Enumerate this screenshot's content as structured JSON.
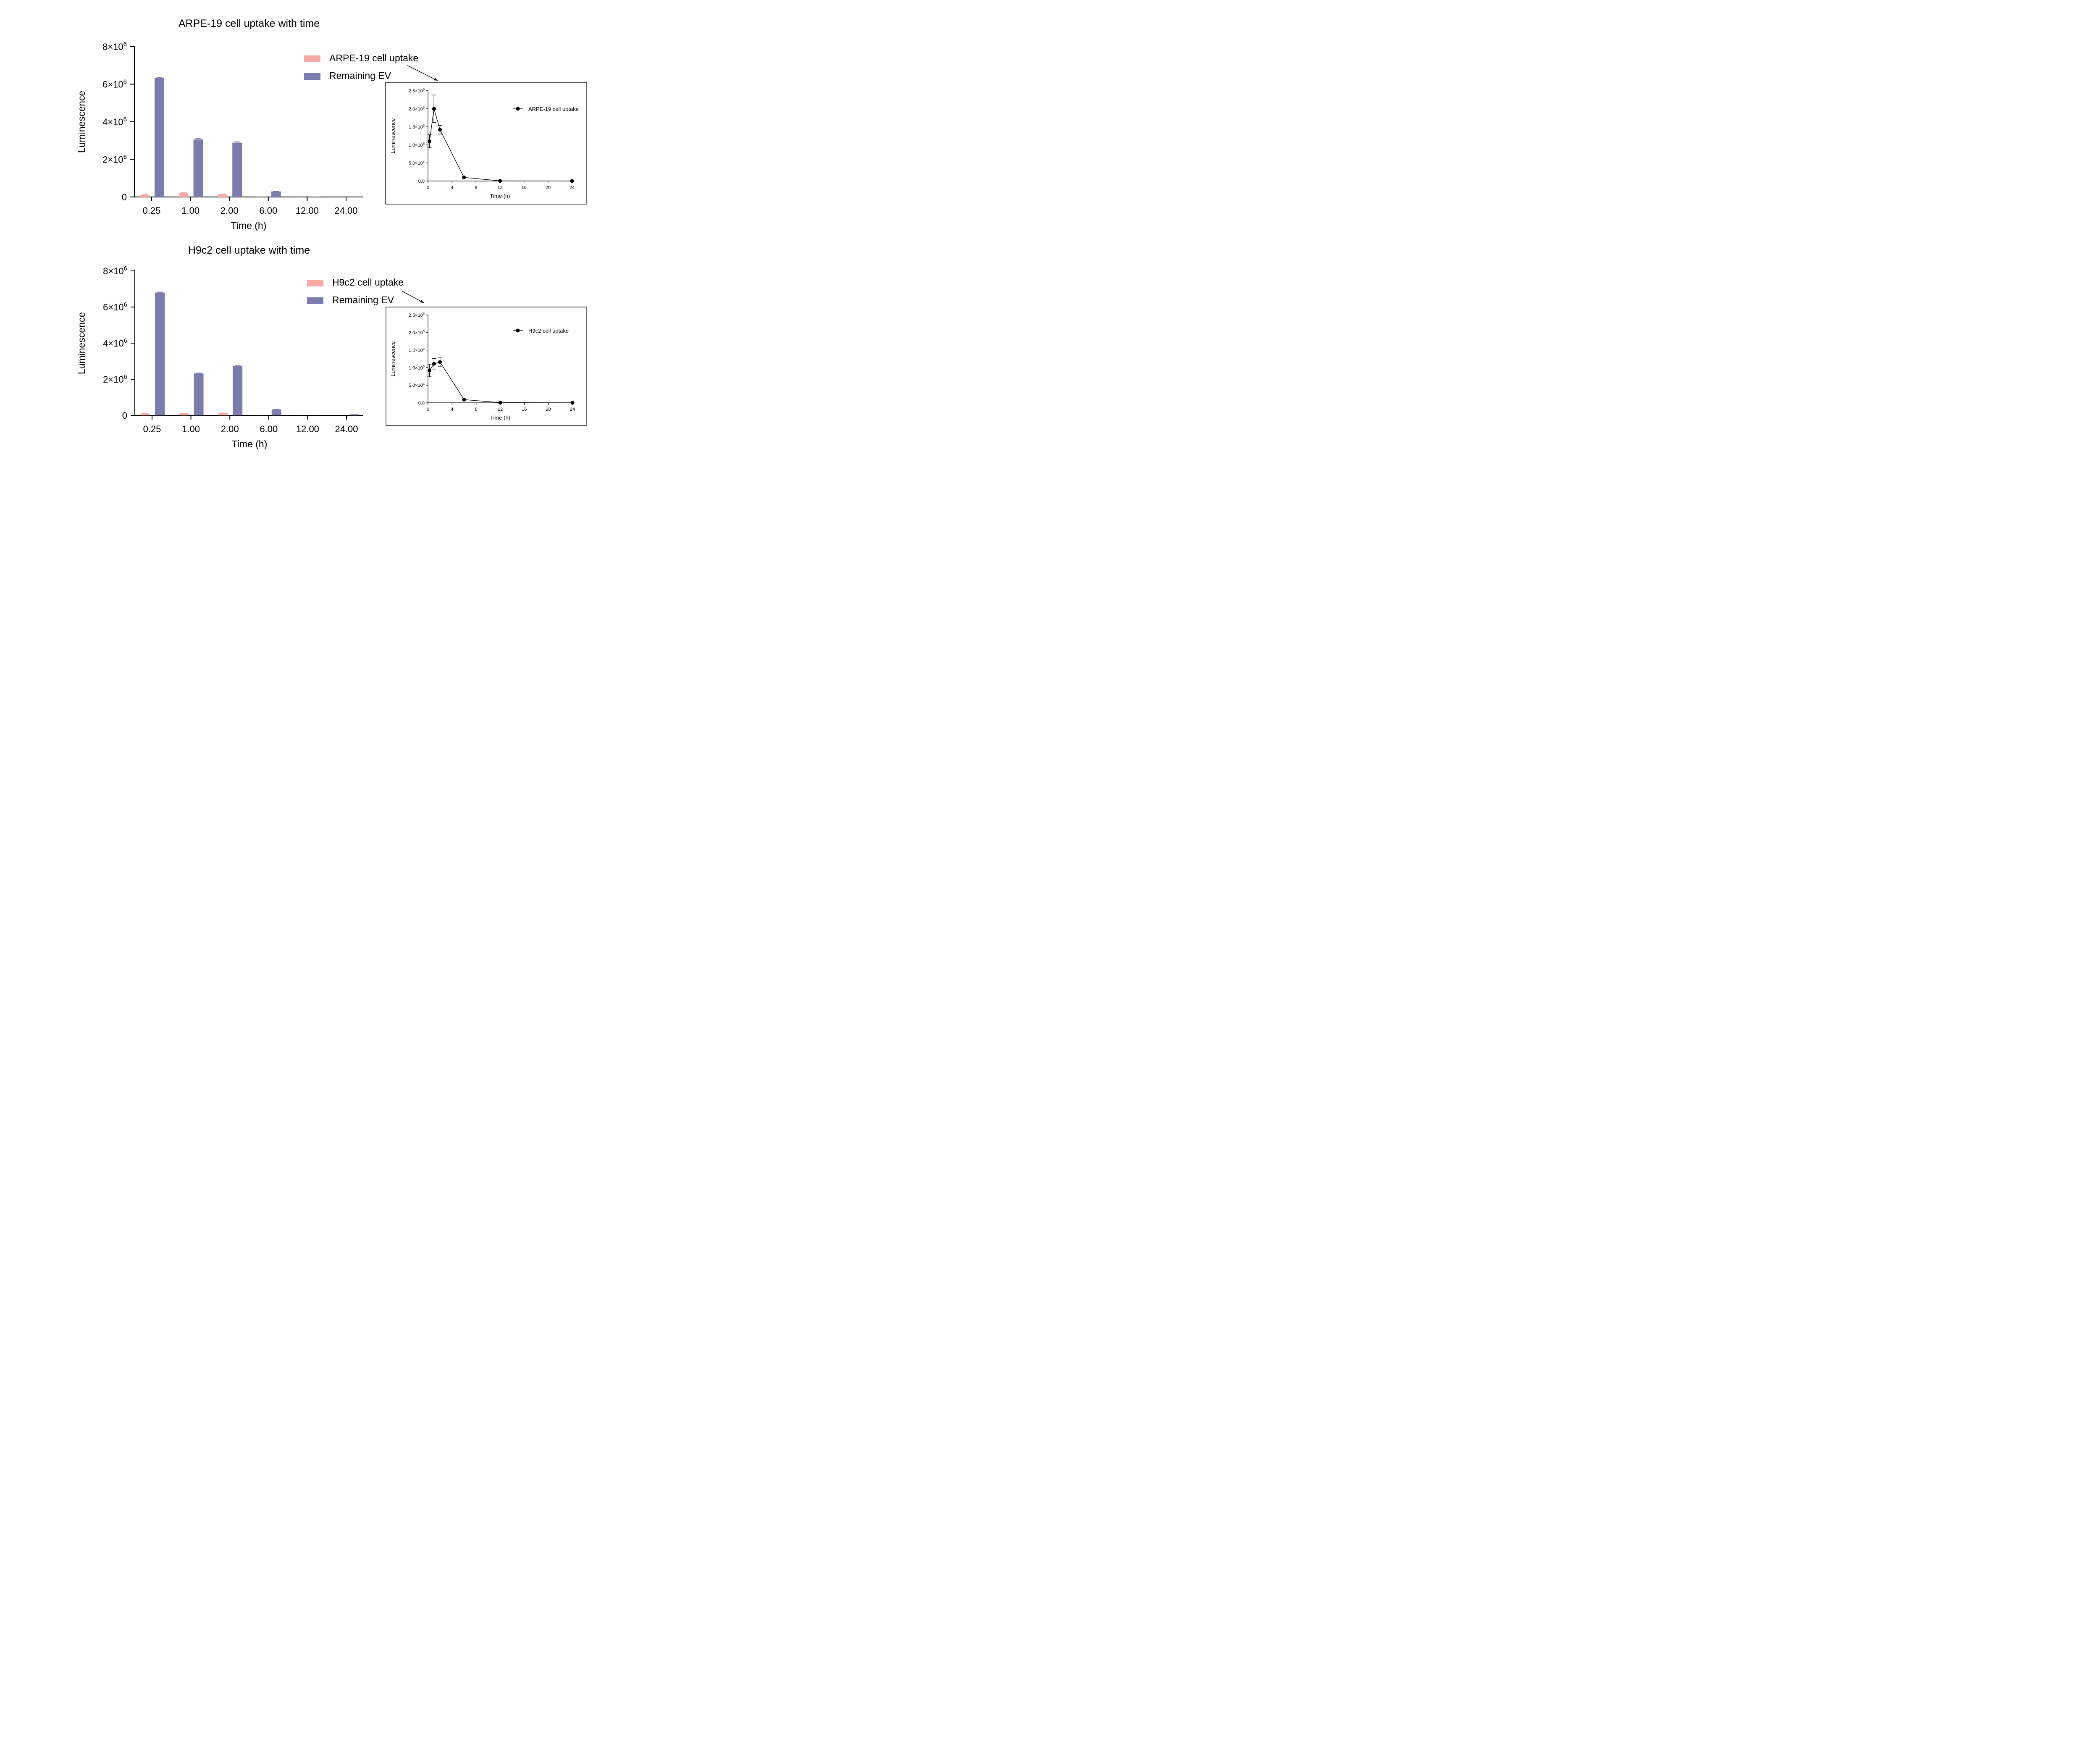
{
  "colors": {
    "uptake": "#f8a9a5",
    "remaining": "#7b7cae",
    "line": "#000000"
  },
  "chart_data": [
    {
      "type": "bar",
      "title": "ARPE-19 cell uptake with time",
      "xlabel": "Time (h)",
      "ylabel": "Luminescence",
      "categories": [
        "0.25",
        "1.00",
        "2.00",
        "6.00",
        "12.00",
        "24.00"
      ],
      "y_ticks": [
        {
          "value": 0,
          "base": "0",
          "exp": ""
        },
        {
          "value": 2000000,
          "base": "2×10",
          "exp": "6"
        },
        {
          "value": 4000000,
          "base": "4×10",
          "exp": "6"
        },
        {
          "value": 6000000,
          "base": "6×10",
          "exp": "6"
        },
        {
          "value": 8000000,
          "base": "8×10",
          "exp": "6"
        }
      ],
      "ylim": [
        0,
        8000000
      ],
      "series": [
        {
          "name": "ARPE-19 cell uptake",
          "values": [
            110000,
            200000,
            140000,
            9000,
            3000,
            1000
          ],
          "errors": [
            20000,
            40000,
            15000,
            0,
            0,
            0
          ]
        },
        {
          "name": "Remaining EV",
          "values": [
            6330000,
            3060000,
            2890000,
            290000,
            15000,
            5000
          ],
          "errors": [
            15000,
            60000,
            40000,
            10000,
            0,
            0
          ]
        }
      ],
      "legend": "top-right",
      "grid": false
    },
    {
      "type": "line",
      "xlabel": "Time (h)",
      "ylabel": "Luminescence",
      "x_ticks": [
        0,
        4,
        8,
        12,
        16,
        20,
        24
      ],
      "y_ticks": [
        {
          "value": 0,
          "base": "0.0",
          "exp": ""
        },
        {
          "value": 50000,
          "base": "5.0×10",
          "exp": "4"
        },
        {
          "value": 100000,
          "base": "1.0×10",
          "exp": "5"
        },
        {
          "value": 150000,
          "base": "1.5×10",
          "exp": "5"
        },
        {
          "value": 200000,
          "base": "2.0×10",
          "exp": "5"
        },
        {
          "value": 250000,
          "base": "2.5×10",
          "exp": "5"
        }
      ],
      "xlim": [
        0,
        24
      ],
      "ylim": [
        0,
        250000
      ],
      "series": [
        {
          "name": "ARPE-19 cell uptake",
          "x": [
            0.25,
            1,
            2,
            6,
            12,
            24
          ],
          "values": [
            110000,
            200000,
            142000,
            10000,
            500,
            0
          ],
          "errors": [
            18000,
            38000,
            12000,
            0,
            0,
            0
          ]
        }
      ],
      "legend": "top-right",
      "grid": false
    },
    {
      "type": "bar",
      "title": "H9c2 cell uptake with time",
      "xlabel": "Time (h)",
      "ylabel": "Luminescence",
      "categories": [
        "0.25",
        "1.00",
        "2.00",
        "6.00",
        "12.00",
        "24.00"
      ],
      "y_ticks": [
        {
          "value": 0,
          "base": "0",
          "exp": ""
        },
        {
          "value": 2000000,
          "base": "2×10",
          "exp": "6"
        },
        {
          "value": 4000000,
          "base": "4×10",
          "exp": "6"
        },
        {
          "value": 6000000,
          "base": "6×10",
          "exp": "6"
        },
        {
          "value": 8000000,
          "base": "8×10",
          "exp": "6"
        }
      ],
      "ylim": [
        0,
        8000000
      ],
      "series": [
        {
          "name": "H9c2 cell uptake",
          "values": [
            90000,
            110000,
            115000,
            9000,
            1000,
            0
          ],
          "errors": [
            15000,
            10000,
            10000,
            0,
            0,
            0
          ]
        },
        {
          "name": "Remaining EV",
          "values": [
            6800000,
            2320000,
            2730000,
            330000,
            5000,
            60000
          ],
          "errors": [
            20000,
            20000,
            20000,
            5000,
            0,
            0
          ]
        }
      ],
      "legend": "top-right",
      "grid": false
    },
    {
      "type": "line",
      "xlabel": "Time (h)",
      "ylabel": "Luminescence",
      "x_ticks": [
        0,
        4,
        8,
        12,
        16,
        20,
        24
      ],
      "y_ticks": [
        {
          "value": 0,
          "base": "0.0",
          "exp": ""
        },
        {
          "value": 50000,
          "base": "5.0×10",
          "exp": "4"
        },
        {
          "value": 100000,
          "base": "1.0×10",
          "exp": "5"
        },
        {
          "value": 150000,
          "base": "1.5×10",
          "exp": "5"
        },
        {
          "value": 200000,
          "base": "2.0×10",
          "exp": "5"
        },
        {
          "value": 250000,
          "base": "2.5×10",
          "exp": "5"
        }
      ],
      "xlim": [
        0,
        24
      ],
      "ylim": [
        0,
        250000
      ],
      "series": [
        {
          "name": "H9c2 cell uptake",
          "x": [
            0.25,
            1,
            2,
            6,
            12,
            24
          ],
          "values": [
            92000,
            111000,
            116000,
            9000,
            500,
            0
          ],
          "errors": [
            18000,
            15000,
            12000,
            0,
            0,
            0
          ]
        }
      ],
      "legend": "top-right",
      "grid": false
    }
  ]
}
